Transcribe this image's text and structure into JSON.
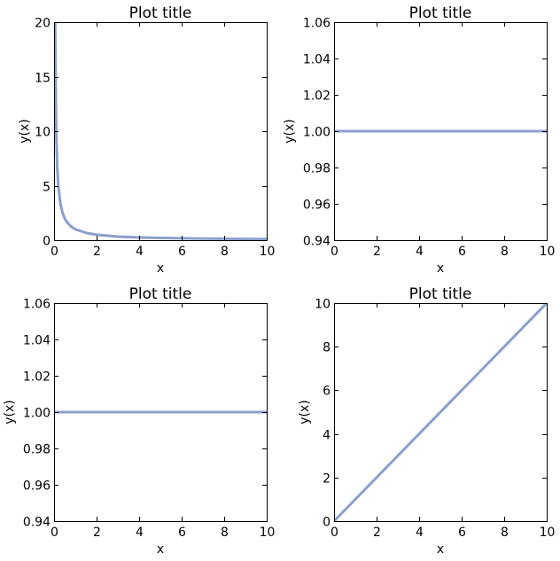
{
  "chart_data": [
    {
      "type": "line",
      "title": "Plot title",
      "xlabel": "x",
      "ylabel": "y(x)",
      "xlim": [
        0,
        10
      ],
      "ylim": [
        0,
        20
      ],
      "xticks": [
        "0",
        "2",
        "4",
        "6",
        "8",
        "10"
      ],
      "yticks": [
        "0",
        "5",
        "10",
        "15",
        "20"
      ],
      "grid": false,
      "series": [
        {
          "color": "#8c9fcc",
          "x": [
            0.05,
            0.1,
            0.15,
            0.2,
            0.3,
            0.4,
            0.5,
            0.6,
            0.8,
            1,
            1.5,
            2,
            3,
            4,
            5,
            6,
            7,
            8,
            9,
            10
          ],
          "y": [
            20,
            10,
            6.67,
            5,
            3.33,
            2.5,
            2,
            1.67,
            1.25,
            1,
            0.67,
            0.5,
            0.33,
            0.25,
            0.2,
            0.17,
            0.14,
            0.13,
            0.11,
            0.1
          ]
        }
      ]
    },
    {
      "type": "line",
      "title": "Plot title",
      "xlabel": "x",
      "ylabel": "y(x)",
      "xlim": [
        0,
        10
      ],
      "ylim": [
        0.94,
        1.06
      ],
      "xticks": [
        "0",
        "2",
        "4",
        "6",
        "8",
        "10"
      ],
      "yticks": [
        "0.94",
        "0.96",
        "0.98",
        "1.00",
        "1.02",
        "1.04",
        "1.06"
      ],
      "grid": false,
      "series": [
        {
          "color": "#8c9fcc",
          "x": [
            0,
            10
          ],
          "y": [
            1,
            1
          ]
        }
      ]
    },
    {
      "type": "line",
      "title": "Plot title",
      "xlabel": "x",
      "ylabel": "y(x)",
      "xlim": [
        0,
        10
      ],
      "ylim": [
        0.94,
        1.06
      ],
      "xticks": [
        "0",
        "2",
        "4",
        "6",
        "8",
        "10"
      ],
      "yticks": [
        "0.94",
        "0.96",
        "0.98",
        "1.00",
        "1.02",
        "1.04",
        "1.06"
      ],
      "grid": false,
      "series": [
        {
          "color": "#8c9fcc",
          "x": [
            0,
            10
          ],
          "y": [
            1,
            1
          ]
        }
      ]
    },
    {
      "type": "line",
      "title": "Plot title",
      "xlabel": "x",
      "ylabel": "y(x)",
      "xlim": [
        0,
        10
      ],
      "ylim": [
        0,
        10
      ],
      "xticks": [
        "0",
        "2",
        "4",
        "6",
        "8",
        "10"
      ],
      "yticks": [
        "0",
        "2",
        "4",
        "6",
        "8",
        "10"
      ],
      "grid": false,
      "series": [
        {
          "color": "#8c9fcc",
          "x": [
            0,
            10
          ],
          "y": [
            0,
            10
          ]
        }
      ]
    }
  ]
}
